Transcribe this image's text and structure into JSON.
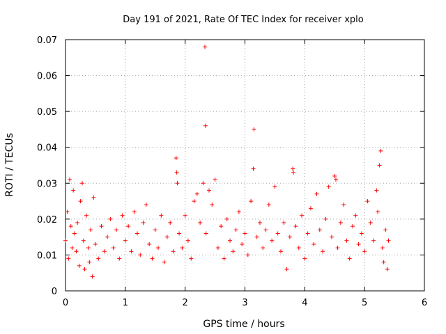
{
  "chart_data": {
    "type": "scatter",
    "title": "Day 191 of 2021, Rate Of TEC Index for receiver xplo",
    "xlabel": "GPS time / hours",
    "ylabel": "ROTI / TECUs",
    "xlim": [
      0,
      6
    ],
    "ylim": [
      0,
      0.07
    ],
    "xticks": [
      0,
      1,
      2,
      3,
      4,
      5,
      6
    ],
    "xtick_labels": [
      "0",
      "1",
      "2",
      "3",
      "4",
      "5",
      "6"
    ],
    "yticks": [
      0,
      0.01,
      0.02,
      0.03,
      0.04,
      0.05,
      0.06,
      0.07
    ],
    "ytick_labels": [
      "0",
      "0.01",
      "0.02",
      "0.03",
      "0.04",
      "0.05",
      "0.06",
      "0.07"
    ],
    "grid": true,
    "marker": "+",
    "color": "#ff0000",
    "series": [
      {
        "name": "ROTI",
        "points": [
          [
            0.0,
            0.014
          ],
          [
            0.03,
            0.022
          ],
          [
            0.05,
            0.009
          ],
          [
            0.07,
            0.031
          ],
          [
            0.09,
            0.018
          ],
          [
            0.11,
            0.012
          ],
          [
            0.13,
            0.028
          ],
          [
            0.15,
            0.016
          ],
          [
            0.18,
            0.011
          ],
          [
            0.2,
            0.019
          ],
          [
            0.23,
            0.007
          ],
          [
            0.25,
            0.025
          ],
          [
            0.28,
            0.03
          ],
          [
            0.3,
            0.014
          ],
          [
            0.32,
            0.006
          ],
          [
            0.35,
            0.021
          ],
          [
            0.38,
            0.012
          ],
          [
            0.4,
            0.008
          ],
          [
            0.42,
            0.017
          ],
          [
            0.45,
            0.004
          ],
          [
            0.47,
            0.026
          ],
          [
            0.5,
            0.013
          ],
          [
            0.55,
            0.009
          ],
          [
            0.6,
            0.018
          ],
          [
            0.65,
            0.011
          ],
          [
            0.7,
            0.015
          ],
          [
            0.75,
            0.02
          ],
          [
            0.8,
            0.012
          ],
          [
            0.85,
            0.017
          ],
          [
            0.9,
            0.009
          ],
          [
            0.95,
            0.021
          ],
          [
            1.0,
            0.014
          ],
          [
            1.05,
            0.018
          ],
          [
            1.1,
            0.011
          ],
          [
            1.15,
            0.022
          ],
          [
            1.2,
            0.016
          ],
          [
            1.25,
            0.01
          ],
          [
            1.3,
            0.019
          ],
          [
            1.35,
            0.024
          ],
          [
            1.4,
            0.013
          ],
          [
            1.45,
            0.009
          ],
          [
            1.5,
            0.017
          ],
          [
            1.55,
            0.012
          ],
          [
            1.6,
            0.021
          ],
          [
            1.65,
            0.008
          ],
          [
            1.7,
            0.015
          ],
          [
            1.75,
            0.019
          ],
          [
            1.8,
            0.011
          ],
          [
            1.85,
            0.037
          ],
          [
            1.86,
            0.033
          ],
          [
            1.87,
            0.03
          ],
          [
            1.9,
            0.016
          ],
          [
            1.95,
            0.012
          ],
          [
            2.0,
            0.021
          ],
          [
            2.05,
            0.014
          ],
          [
            2.1,
            0.009
          ],
          [
            2.15,
            0.025
          ],
          [
            2.2,
            0.027
          ],
          [
            2.25,
            0.019
          ],
          [
            2.3,
            0.03
          ],
          [
            2.33,
            0.068
          ],
          [
            2.34,
            0.046
          ],
          [
            2.35,
            0.016
          ],
          [
            2.4,
            0.028
          ],
          [
            2.45,
            0.024
          ],
          [
            2.5,
            0.031
          ],
          [
            2.55,
            0.012
          ],
          [
            2.6,
            0.018
          ],
          [
            2.65,
            0.009
          ],
          [
            2.7,
            0.02
          ],
          [
            2.75,
            0.014
          ],
          [
            2.8,
            0.011
          ],
          [
            2.85,
            0.017
          ],
          [
            2.9,
            0.022
          ],
          [
            2.95,
            0.013
          ],
          [
            3.0,
            0.016
          ],
          [
            3.05,
            0.01
          ],
          [
            3.1,
            0.025
          ],
          [
            3.14,
            0.034
          ],
          [
            3.15,
            0.045
          ],
          [
            3.2,
            0.015
          ],
          [
            3.25,
            0.019
          ],
          [
            3.3,
            0.012
          ],
          [
            3.35,
            0.017
          ],
          [
            3.4,
            0.024
          ],
          [
            3.45,
            0.014
          ],
          [
            3.5,
            0.029
          ],
          [
            3.55,
            0.016
          ],
          [
            3.6,
            0.011
          ],
          [
            3.65,
            0.019
          ],
          [
            3.7,
            0.006
          ],
          [
            3.75,
            0.015
          ],
          [
            3.8,
            0.034
          ],
          [
            3.81,
            0.033
          ],
          [
            3.85,
            0.018
          ],
          [
            3.9,
            0.012
          ],
          [
            3.95,
            0.021
          ],
          [
            4.0,
            0.009
          ],
          [
            4.05,
            0.016
          ],
          [
            4.1,
            0.023
          ],
          [
            4.15,
            0.013
          ],
          [
            4.2,
            0.027
          ],
          [
            4.25,
            0.017
          ],
          [
            4.3,
            0.011
          ],
          [
            4.35,
            0.02
          ],
          [
            4.4,
            0.029
          ],
          [
            4.45,
            0.015
          ],
          [
            4.5,
            0.032
          ],
          [
            4.52,
            0.031
          ],
          [
            4.55,
            0.012
          ],
          [
            4.6,
            0.019
          ],
          [
            4.65,
            0.024
          ],
          [
            4.7,
            0.014
          ],
          [
            4.75,
            0.009
          ],
          [
            4.8,
            0.018
          ],
          [
            4.85,
            0.021
          ],
          [
            4.9,
            0.013
          ],
          [
            4.95,
            0.016
          ],
          [
            5.0,
            0.011
          ],
          [
            5.05,
            0.025
          ],
          [
            5.1,
            0.019
          ],
          [
            5.15,
            0.014
          ],
          [
            5.2,
            0.028
          ],
          [
            5.22,
            0.022
          ],
          [
            5.25,
            0.035
          ],
          [
            5.27,
            0.039
          ],
          [
            5.3,
            0.012
          ],
          [
            5.32,
            0.008
          ],
          [
            5.35,
            0.017
          ],
          [
            5.38,
            0.006
          ],
          [
            5.4,
            0.014
          ]
        ]
      }
    ]
  }
}
